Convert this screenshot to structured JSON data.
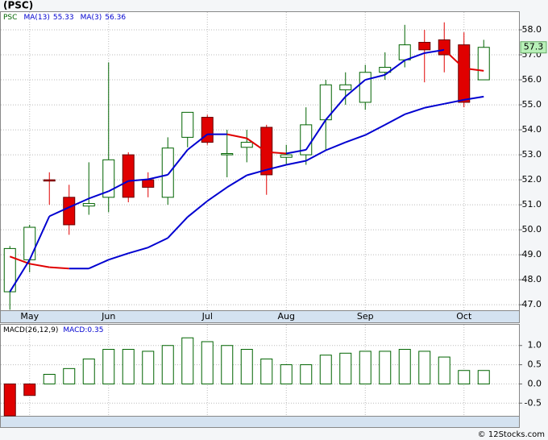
{
  "chart_data": [
    {
      "type": "candlestick",
      "title": "(PSC)",
      "symbol": "PSC",
      "categories": [
        null,
        "May",
        null,
        null,
        null,
        "Jun",
        null,
        null,
        null,
        null,
        "Jul",
        null,
        null,
        null,
        "Aug",
        null,
        null,
        null,
        "Sep",
        null,
        null,
        null,
        null,
        "Oct",
        null
      ],
      "open": [
        47.52,
        48.8,
        52.0,
        51.3,
        50.95,
        51.3,
        53.0,
        52.0,
        51.3,
        53.7,
        54.5,
        53.0,
        53.3,
        54.1,
        52.9,
        53.0,
        54.4,
        55.6,
        55.1,
        56.3,
        56.8,
        57.5,
        57.6,
        57.4,
        56.0
      ],
      "high": [
        49.35,
        50.2,
        52.3,
        51.8,
        52.7,
        56.7,
        53.1,
        52.3,
        53.7,
        54.7,
        54.6,
        54.0,
        54.0,
        54.2,
        53.4,
        54.9,
        56.0,
        56.3,
        56.6,
        57.1,
        58.2,
        58.0,
        58.3,
        57.9,
        57.6
      ],
      "low": [
        46.8,
        48.3,
        51.0,
        49.8,
        50.6,
        50.7,
        51.1,
        51.3,
        51.0,
        53.3,
        53.4,
        52.1,
        52.7,
        51.4,
        52.6,
        52.6,
        53.2,
        55.0,
        54.8,
        56.0,
        56.5,
        55.9,
        56.3,
        54.9,
        56.0
      ],
      "close": [
        49.25,
        50.1,
        51.95,
        50.2,
        51.05,
        52.8,
        51.3,
        51.7,
        53.27,
        54.7,
        53.5,
        53.05,
        53.5,
        52.2,
        53.0,
        54.2,
        55.8,
        55.8,
        56.3,
        56.5,
        57.4,
        57.2,
        57.0,
        55.1,
        57.3
      ],
      "up_color": "#006400",
      "down_color": "#e00000",
      "series": [
        {
          "name": "MA(13)",
          "up_color": "#0000d0",
          "down_color": "#e00000",
          "values": [
            48.93,
            48.64,
            48.5,
            48.45,
            48.45,
            48.8,
            49.06,
            49.29,
            49.67,
            50.51,
            51.15,
            51.7,
            52.18,
            52.4,
            52.6,
            52.76,
            53.18,
            53.5,
            53.79,
            54.2,
            54.62,
            54.88,
            55.04,
            55.2,
            55.33
          ]
        },
        {
          "name": "MA(3)",
          "up_color": "#0000d0",
          "down_color": "#e00000",
          "values": [
            47.52,
            48.8,
            50.54,
            50.9,
            51.25,
            51.54,
            51.95,
            52.02,
            52.2,
            53.2,
            53.82,
            53.82,
            53.66,
            53.11,
            53.05,
            53.2,
            54.4,
            55.33,
            56.0,
            56.2,
            56.78,
            57.07,
            57.2,
            56.46,
            56.36
          ]
        }
      ],
      "ylim": [
        46.78,
        58.71
      ],
      "yticks": [
        {
          "value": 47,
          "label": "47.0"
        },
        {
          "value": 48,
          "label": "48.0"
        },
        {
          "value": 49,
          "label": "49.0"
        },
        {
          "value": 50,
          "label": "50.0"
        },
        {
          "value": 51,
          "label": "51.0"
        },
        {
          "value": 52,
          "label": "52.0"
        },
        {
          "value": 53,
          "label": "53.0"
        },
        {
          "value": 54,
          "label": "54.0"
        },
        {
          "value": 55,
          "label": "55.0"
        },
        {
          "value": 56,
          "label": "56.0"
        },
        {
          "value": 57,
          "label": "57.0"
        },
        {
          "value": 58,
          "label": "58.0"
        }
      ],
      "grid": true
    },
    {
      "type": "bar",
      "title": "MACD(26,12,9)",
      "series": [
        {
          "name": "MACD:",
          "up_color": "#006400",
          "down_color": "#e00000",
          "values": [
            -0.83,
            -0.3,
            0.25,
            0.4,
            0.65,
            0.9,
            0.9,
            0.85,
            1.0,
            1.2,
            1.1,
            1.0,
            0.9,
            0.65,
            0.5,
            0.5,
            0.75,
            0.8,
            0.85,
            0.85,
            0.9,
            0.85,
            0.7,
            0.35,
            0.35
          ]
        }
      ],
      "ylim": [
        -0.83,
        1.54
      ],
      "yticks": [
        {
          "value": 1,
          "label": "1.0"
        },
        0.5,
        {
          "value": 0,
          "label": "0.0"
        },
        -0.5
      ],
      "grid": true
    }
  ],
  "footer": "© 12Stocks.com"
}
